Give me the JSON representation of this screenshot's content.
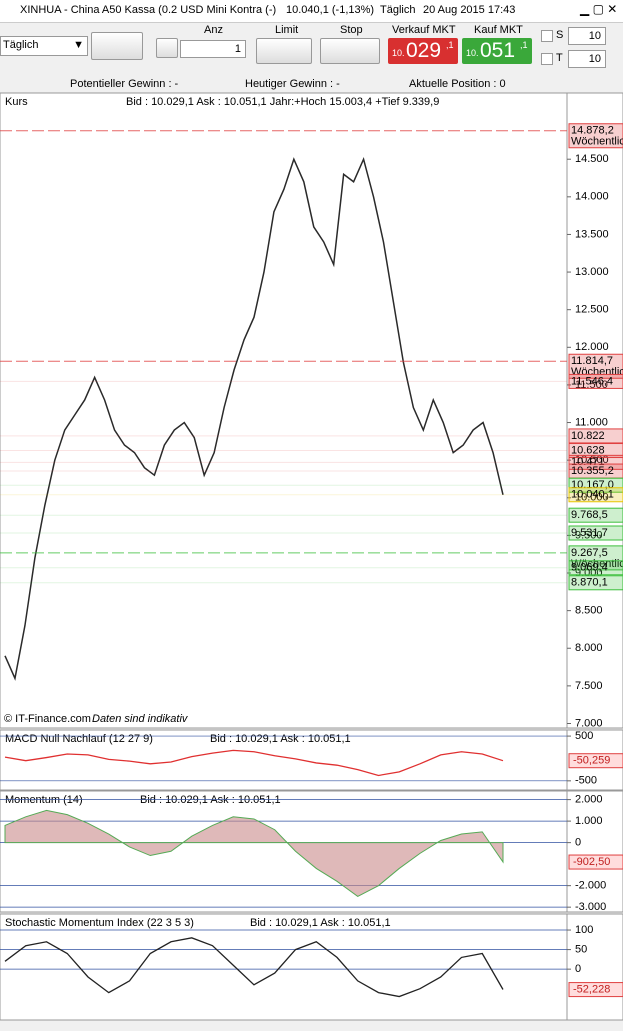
{
  "window": {
    "title": "XINHUA - China A50 Kassa (0.2 USD Mini Kontra (-)",
    "price": "10.040,1 (-1,13%)",
    "period": "Täglich",
    "datetime": "20 Aug 2015 17:43"
  },
  "toolbar": {
    "timeframe": "Täglich",
    "qty_label": "Anz",
    "qty": "1",
    "limit": "Limit",
    "stop": "Stop",
    "sell_label": "Verkauf MKT",
    "sell_small": "10.",
    "sell_big": "029",
    "sell_frac": ",1",
    "buy_label": "Kauf MKT",
    "buy_small": "10.",
    "buy_big": "051",
    "buy_frac": ",1",
    "s_label": "S",
    "s_value": "10",
    "t_label": "T",
    "t_value": "10"
  },
  "status": {
    "potential": "Potentieller Gewinn : -",
    "today": "Heutiger Gewinn : -",
    "position": "Aktuelle Position : 0"
  },
  "footer": {
    "copyright": "© IT-Finance.com",
    "note": "Daten sind indikativ"
  },
  "chart_data": [
    {
      "type": "line",
      "title": "Kurs",
      "info": "Bid : 10.029,1 Ask : 10.051,1 Jahr:+Hoch 15.003,4 +Tief 9.339,9",
      "color": "#2a2a2a",
      "values": [
        7900,
        7600,
        8300,
        9200,
        9900,
        10500,
        10900,
        11100,
        11300,
        11600,
        11300,
        10900,
        10700,
        10600,
        10400,
        10300,
        10700,
        10900,
        11000,
        10800,
        10300,
        10600,
        11200,
        11700,
        12100,
        12400,
        13000,
        13800,
        14100,
        14500,
        14200,
        13600,
        13400,
        13100,
        14300,
        14200,
        14500,
        14000,
        13400,
        12600,
        11800,
        11200,
        10900,
        11300,
        11000,
        10600,
        10700,
        10900,
        11000,
        10600,
        10040
      ],
      "ylim": [
        6940,
        15380
      ],
      "yticks": [
        {
          "value": 7000,
          "label": "7.000"
        },
        {
          "value": 7500,
          "label": "7.500"
        },
        {
          "value": 8000,
          "label": "8.000"
        },
        {
          "value": 8500,
          "label": "8.500"
        },
        {
          "value": 9000,
          "label": "9.000"
        },
        {
          "value": 9500,
          "label": "9.500"
        },
        {
          "value": 10000,
          "label": "10.000"
        },
        {
          "value": 10500,
          "label": "10.500"
        },
        {
          "value": 11000,
          "label": "11.000"
        },
        {
          "value": 11500,
          "label": "11.500"
        },
        {
          "value": 12000,
          "label": "12.000"
        },
        {
          "value": 12500,
          "label": "12.500"
        },
        {
          "value": 13000,
          "label": "13.000"
        },
        {
          "value": 13500,
          "label": "13.500"
        },
        {
          "value": 14000,
          "label": "14.000"
        },
        {
          "value": 14500,
          "label": "14.500"
        }
      ],
      "price_labels": [
        {
          "value": 14878.2,
          "label": "14.878,2",
          "sub": "Wöchentlich",
          "color": "#e04040"
        },
        {
          "value": 11814.7,
          "label": "11.814,7",
          "sub": "Wöchentlich",
          "color": "#e04040"
        },
        {
          "value": 11546.4,
          "label": "11.546,4",
          "color": "#e04040"
        },
        {
          "value": 10822,
          "label": "10.822",
          "color": "#e04040"
        },
        {
          "value": 10628,
          "label": "10.628",
          "color": "#e04040"
        },
        {
          "value": 10471,
          "label": "10.471",
          "color": "#e04040"
        },
        {
          "value": 10355.2,
          "label": "10.355,2",
          "color": "#e04040"
        },
        {
          "value": 10167.0,
          "label": "10.167,0",
          "color": "#3cbf3c"
        },
        {
          "value": 10040.1,
          "label": "10.040,1",
          "color": "#e8c400"
        },
        {
          "value": 9768.5,
          "label": "9.768,5",
          "color": "#3cbf3c"
        },
        {
          "value": 9531.7,
          "label": "9.531,7",
          "color": "#3cbf3c"
        },
        {
          "value": 9267.5,
          "label": "9.267,5",
          "sub": "Wöchentlich",
          "color": "#3cbf3c"
        },
        {
          "value": 9069.4,
          "label": "9.069,4",
          "color": "#3cbf3c"
        },
        {
          "value": 8870.1,
          "label": "8.870,1",
          "color": "#3cbf3c"
        }
      ]
    },
    {
      "type": "line",
      "title": "MACD Null Nachlauf (12 27 9)",
      "info": "Bid : 10.029,1 Ask : 10.051,1",
      "color": "#e03030",
      "values": [
        30,
        -50,
        20,
        100,
        80,
        -20,
        -60,
        -120,
        -80,
        40,
        120,
        180,
        150,
        60,
        -10,
        -100,
        -150,
        -250,
        -380,
        -300,
        -120,
        80,
        150,
        100,
        -50
      ],
      "ylim": [
        -705,
        636
      ],
      "yticks": [
        -500,
        500
      ],
      "last": {
        "value": -50.259,
        "label": "-50,259"
      }
    },
    {
      "type": "area",
      "title": "Momentum (14)",
      "info": "Bid : 10.029,1 Ask : 10.051,1",
      "color": "#c98a8a",
      "values": [
        800,
        1200,
        1500,
        1300,
        900,
        400,
        -200,
        -600,
        -400,
        300,
        800,
        1200,
        1100,
        600,
        -400,
        -1200,
        -1800,
        -2500,
        -2000,
        -1200,
        -500,
        100,
        400,
        500,
        -900
      ],
      "ylim": [
        -3225,
        2400
      ],
      "yticks": [
        {
          "value": -3000,
          "label": "-3.000"
        },
        {
          "value": -2000,
          "label": "-2.000"
        },
        0,
        {
          "value": 1000,
          "label": "1.000"
        },
        {
          "value": 2000,
          "label": "2.000"
        }
      ],
      "last": {
        "value": -902.5,
        "label": "-902,50"
      }
    },
    {
      "type": "line",
      "title": "Stochastic Momentum Index (22 3 5 3)",
      "info": "Bid : 10.029,1 Ask : 10.051,1",
      "color": "#222",
      "values": [
        20,
        60,
        70,
        40,
        -20,
        -60,
        -30,
        40,
        70,
        80,
        60,
        10,
        -40,
        -10,
        50,
        70,
        30,
        -30,
        -60,
        -70,
        -50,
        -20,
        30,
        40,
        -52
      ],
      "ylim": [
        -130,
        141
      ],
      "yticks": [
        0,
        50,
        100
      ],
      "last": {
        "value": -52.228,
        "label": "-52,228"
      }
    }
  ]
}
